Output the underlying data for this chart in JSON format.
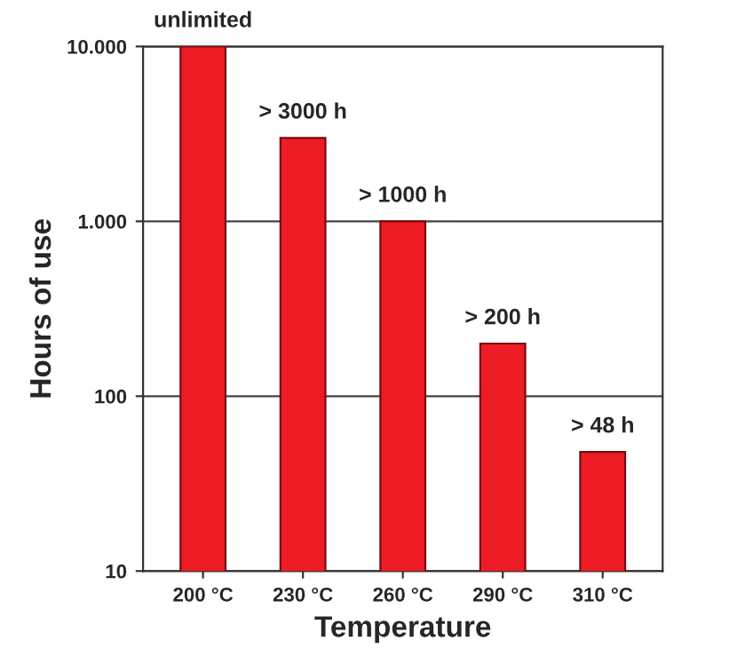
{
  "chart_data": {
    "type": "bar",
    "xlabel": "Temperature",
    "ylabel": "Hours of use",
    "categories": [
      "200 °C",
      "230 °C",
      "260 °C",
      "290 °C",
      "310 °C"
    ],
    "values": [
      10000,
      3000,
      1000,
      200,
      48
    ],
    "value_labels": [
      "unlimited",
      "> 3000 h",
      "> 1000 h",
      "> 200 h",
      "> 48 h"
    ],
    "color": "#ee1c25",
    "log": "y",
    "ylim": [
      10,
      10000
    ],
    "yticks": [
      {
        "value": 10,
        "label": "10"
      },
      {
        "value": 100,
        "label": "100"
      },
      {
        "value": 1000,
        "label": "1.000"
      },
      {
        "value": 10000,
        "label": "10.000"
      }
    ],
    "grid": "y"
  }
}
